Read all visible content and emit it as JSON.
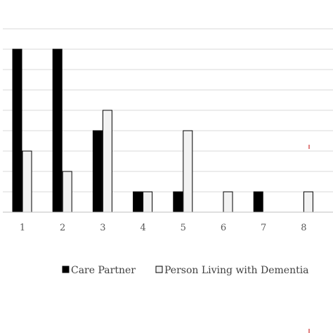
{
  "chart_data": {
    "type": "bar",
    "categories": [
      "1",
      "2",
      "3",
      "4",
      "5",
      "6",
      "7",
      "8"
    ],
    "series": [
      {
        "name": "Care Partner",
        "values": [
          8,
          8,
          4,
          1,
          1,
          0,
          1,
          0
        ],
        "color": "#000000"
      },
      {
        "name": "Person Living with Dementia",
        "values": [
          3,
          2,
          5,
          1,
          4,
          1,
          0,
          1
        ],
        "color": "#f2f2f2"
      }
    ],
    "ylim": [
      0,
      9
    ],
    "grid": true,
    "legend": "bottom",
    "title": "",
    "xlabel": "",
    "ylabel": ""
  }
}
